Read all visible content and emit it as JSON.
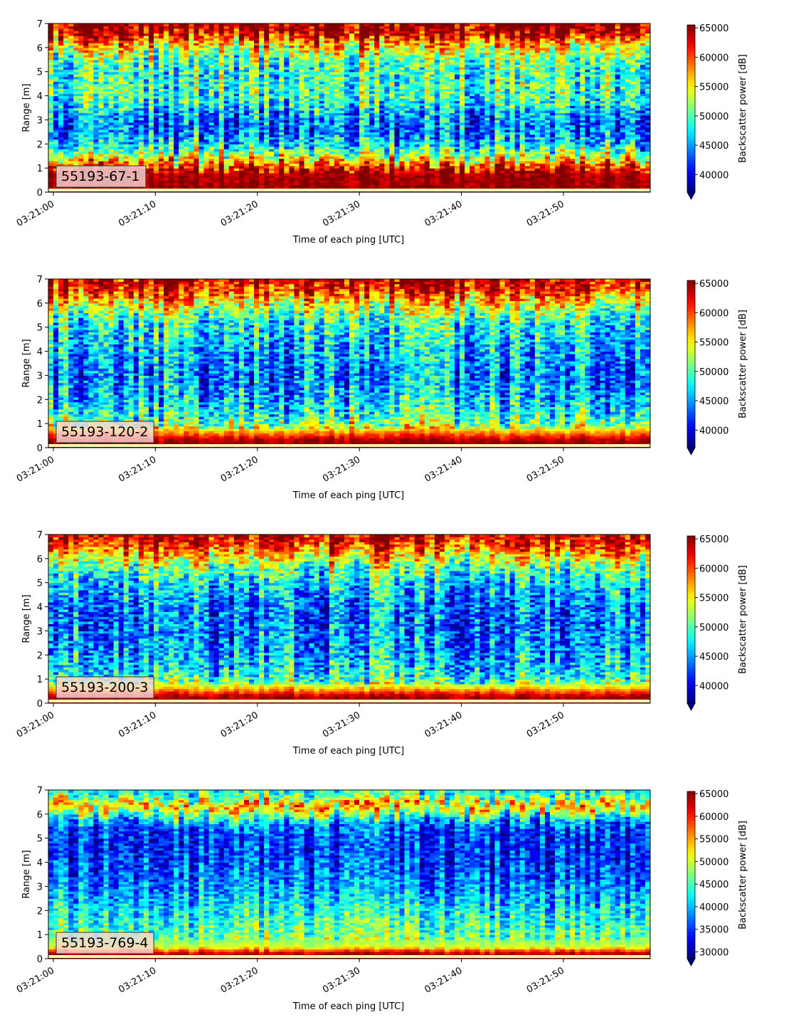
{
  "chart_data": [
    {
      "type": "heatmap",
      "label": "55193-67-1",
      "xlabel": "Time of each ping [UTC]",
      "ylabel": "Range [m]",
      "colorbar_label": "Backscatter power [dB]",
      "colormap": "jet",
      "x_ticks": [
        "03:21:00",
        "03:21:10",
        "03:21:20",
        "03:21:30",
        "03:21:40",
        "03:21:50"
      ],
      "xlim": [
        "03:21:00",
        "03:21:59"
      ],
      "y_ticks": [
        0,
        1,
        2,
        3,
        4,
        5,
        6,
        7
      ],
      "ylim": [
        0,
        7
      ],
      "colorbar_ticks": [
        40000,
        45000,
        50000,
        55000,
        60000,
        65000
      ],
      "clim": [
        37000,
        65500
      ],
      "colorbar_extend": "min",
      "profile": [
        {
          "range": 0.0,
          "value": 65000
        },
        {
          "range": 0.3,
          "value": 65000
        },
        {
          "range": 0.9,
          "value": 64000
        },
        {
          "range": 1.1,
          "value": 61000
        },
        {
          "range": 1.5,
          "value": 54000
        },
        {
          "range": 2.0,
          "value": 47000
        },
        {
          "range": 2.6,
          "value": 43500
        },
        {
          "range": 3.2,
          "value": 45000
        },
        {
          "range": 3.8,
          "value": 49000
        },
        {
          "range": 4.4,
          "value": 50000
        },
        {
          "range": 5.0,
          "value": 49000
        },
        {
          "range": 5.6,
          "value": 51000
        },
        {
          "range": 6.2,
          "value": 57000
        },
        {
          "range": 6.6,
          "value": 64500
        },
        {
          "range": 7.0,
          "value": 65000
        }
      ]
    },
    {
      "type": "heatmap",
      "label": "55193-120-2",
      "xlabel": "Time of each ping [UTC]",
      "ylabel": "Range [m]",
      "colorbar_label": "Backscatter power [dB]",
      "colormap": "jet",
      "x_ticks": [
        "03:21:00",
        "03:21:10",
        "03:21:20",
        "03:21:30",
        "03:21:40",
        "03:21:50"
      ],
      "xlim": [
        "03:21:00",
        "03:21:59"
      ],
      "y_ticks": [
        0,
        1,
        2,
        3,
        4,
        5,
        6,
        7
      ],
      "ylim": [
        0,
        7
      ],
      "colorbar_ticks": [
        40000,
        45000,
        50000,
        55000,
        60000,
        65000
      ],
      "clim": [
        37000,
        65500
      ],
      "colorbar_extend": "min",
      "profile": [
        {
          "range": 0.0,
          "value": 65000
        },
        {
          "range": 0.3,
          "value": 65000
        },
        {
          "range": 0.6,
          "value": 59000
        },
        {
          "range": 1.0,
          "value": 51000
        },
        {
          "range": 1.6,
          "value": 48000
        },
        {
          "range": 2.2,
          "value": 46000
        },
        {
          "range": 3.0,
          "value": 44500
        },
        {
          "range": 3.8,
          "value": 45500
        },
        {
          "range": 4.6,
          "value": 47000
        },
        {
          "range": 5.4,
          "value": 49500
        },
        {
          "range": 6.0,
          "value": 55000
        },
        {
          "range": 6.5,
          "value": 61000
        },
        {
          "range": 7.0,
          "value": 64000
        }
      ]
    },
    {
      "type": "heatmap",
      "label": "55193-200-3",
      "xlabel": "Time of each ping [UTC]",
      "ylabel": "Range [m]",
      "colorbar_label": "Backscatter power [dB]",
      "colormap": "jet",
      "x_ticks": [
        "03:21:00",
        "03:21:10",
        "03:21:20",
        "03:21:30",
        "03:21:40",
        "03:21:50"
      ],
      "xlim": [
        "03:21:00",
        "03:21:59"
      ],
      "y_ticks": [
        0,
        1,
        2,
        3,
        4,
        5,
        6,
        7
      ],
      "ylim": [
        0,
        7
      ],
      "colorbar_ticks": [
        40000,
        45000,
        50000,
        55000,
        60000,
        65000
      ],
      "clim": [
        37000,
        65500
      ],
      "colorbar_extend": "min",
      "profile": [
        {
          "range": 0.0,
          "value": 65000
        },
        {
          "range": 0.3,
          "value": 64500
        },
        {
          "range": 0.6,
          "value": 57000
        },
        {
          "range": 1.0,
          "value": 49000
        },
        {
          "range": 1.6,
          "value": 46500
        },
        {
          "range": 2.4,
          "value": 45000
        },
        {
          "range": 3.2,
          "value": 44000
        },
        {
          "range": 4.0,
          "value": 44500
        },
        {
          "range": 4.8,
          "value": 46500
        },
        {
          "range": 5.5,
          "value": 50000
        },
        {
          "range": 6.1,
          "value": 56000
        },
        {
          "range": 6.6,
          "value": 62000
        },
        {
          "range": 7.0,
          "value": 64000
        }
      ]
    },
    {
      "type": "heatmap",
      "label": "55193-769-4",
      "xlabel": "Time of each ping [UTC]",
      "ylabel": "Range [m]",
      "colorbar_label": "Backscatter power [dB]",
      "colormap": "jet",
      "x_ticks": [
        "03:21:00",
        "03:21:10",
        "03:21:20",
        "03:21:30",
        "03:21:40",
        "03:21:50"
      ],
      "xlim": [
        "03:21:00",
        "03:21:59"
      ],
      "y_ticks": [
        0,
        1,
        2,
        3,
        4,
        5,
        6,
        7
      ],
      "ylim": [
        0,
        7
      ],
      "colorbar_ticks": [
        30000,
        35000,
        40000,
        45000,
        50000,
        55000,
        60000,
        65000
      ],
      "clim": [
        28500,
        65500
      ],
      "colorbar_extend": "min",
      "profile": [
        {
          "range": 0.0,
          "value": 64000
        },
        {
          "range": 0.25,
          "value": 63000
        },
        {
          "range": 0.5,
          "value": 50000
        },
        {
          "range": 1.0,
          "value": 45500
        },
        {
          "range": 1.8,
          "value": 43000
        },
        {
          "range": 2.6,
          "value": 39500
        },
        {
          "range": 3.4,
          "value": 36500
        },
        {
          "range": 4.2,
          "value": 35000
        },
        {
          "range": 5.0,
          "value": 34500
        },
        {
          "range": 5.6,
          "value": 36500
        },
        {
          "range": 6.1,
          "value": 48000
        },
        {
          "range": 6.4,
          "value": 56000
        },
        {
          "range": 6.7,
          "value": 45000
        },
        {
          "range": 7.0,
          "value": 42000
        }
      ]
    }
  ]
}
